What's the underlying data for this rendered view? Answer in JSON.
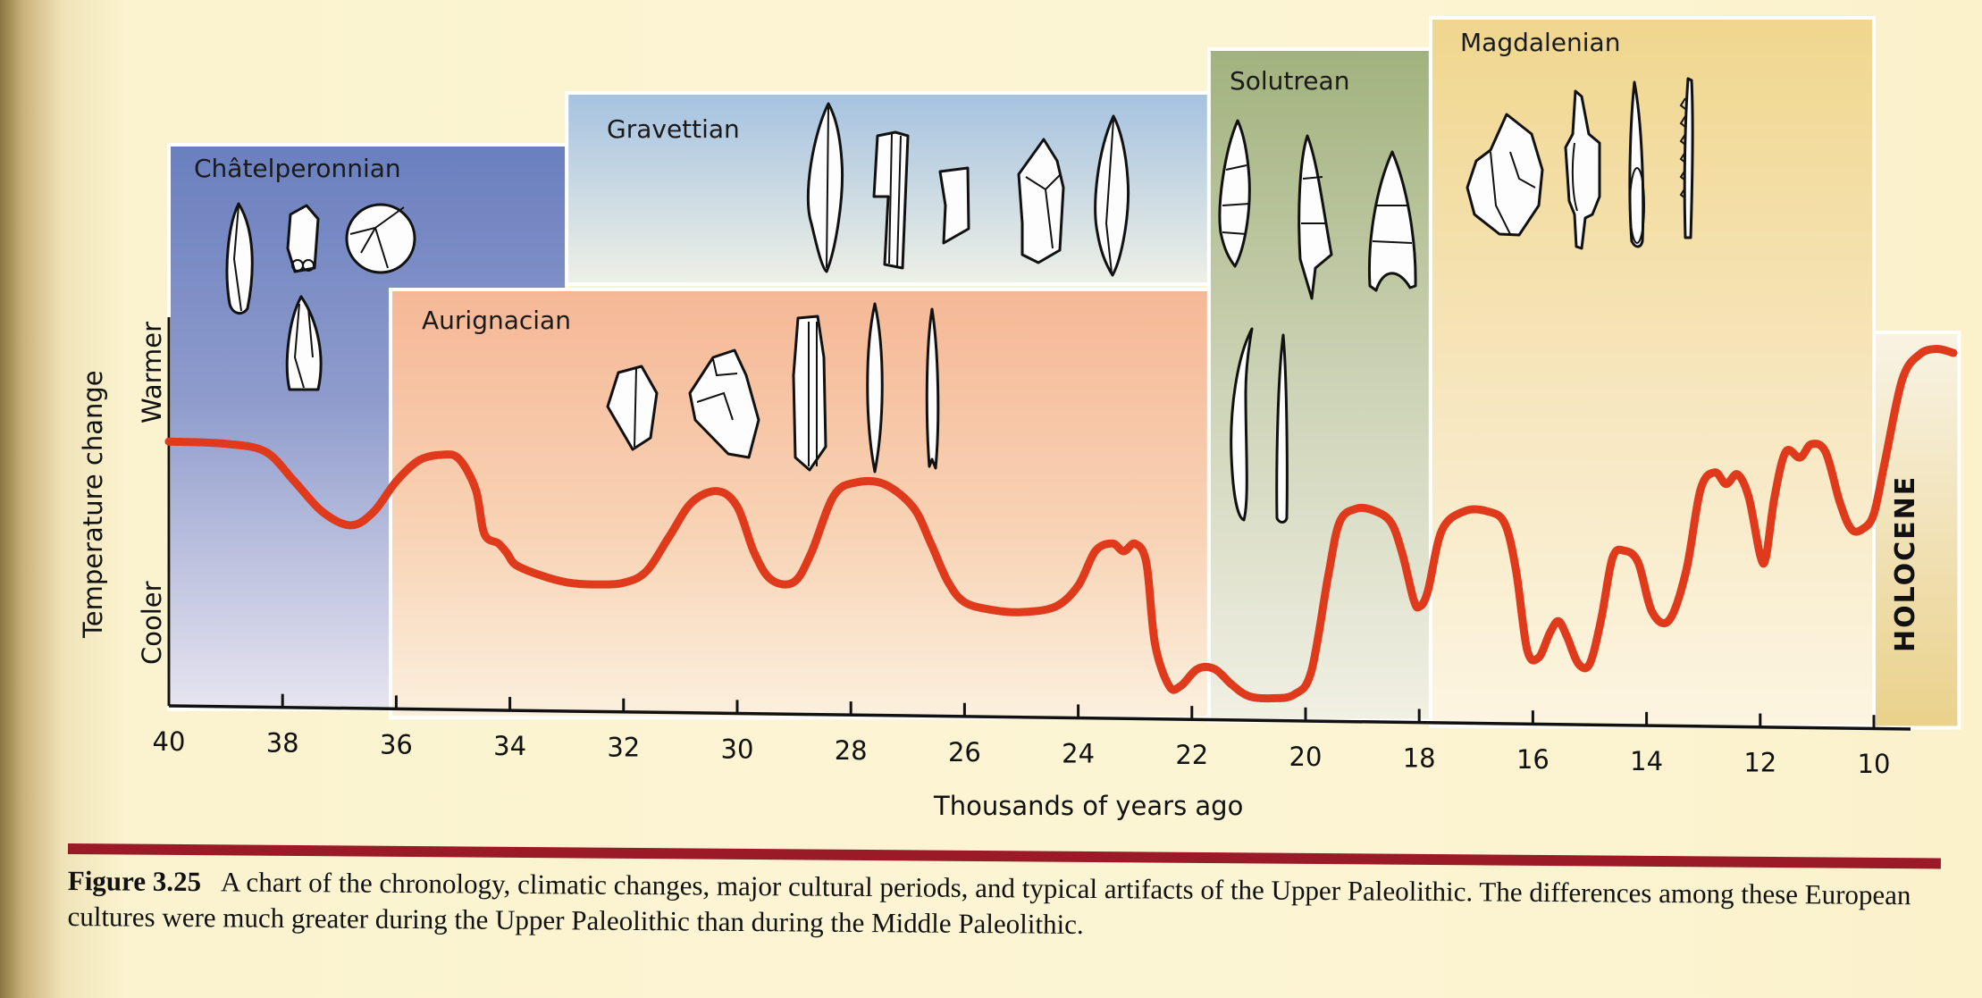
{
  "chart_data": {
    "type": "line",
    "title": "",
    "xlabel": "Thousands of years ago",
    "ylabel": "Temperature change",
    "y_axis_labels": {
      "low": "Cooler",
      "high": "Warmer"
    },
    "xlim": [
      40,
      8.5
    ],
    "x_reversed": true,
    "ylim": [
      0,
      10
    ],
    "grid": false,
    "x_ticks": [
      40,
      38,
      36,
      34,
      32,
      30,
      28,
      26,
      24,
      22,
      20,
      18,
      16,
      14,
      12,
      10
    ],
    "x_tick_labels": [
      "40",
      "38",
      "36",
      "34",
      "32",
      "30",
      "28",
      "26",
      "24",
      "22",
      "20",
      "18",
      "16",
      "14",
      "12",
      "10"
    ],
    "series": [
      {
        "name": "Temperature change",
        "color": "#e03a1c",
        "x": [
          40.0,
          39.0,
          38.3,
          37.8,
          37.3,
          36.8,
          36.4,
          36.0,
          35.6,
          35.2,
          34.9,
          34.6,
          34.45,
          34.2,
          34.05,
          33.9,
          33.5,
          33.0,
          32.5,
          32.0,
          31.6,
          31.2,
          30.8,
          30.35,
          30.0,
          29.7,
          29.4,
          29.0,
          28.7,
          28.3,
          27.9,
          27.4,
          26.9,
          26.6,
          26.3,
          26.0,
          25.5,
          25.0,
          24.4,
          24.0,
          23.7,
          23.4,
          23.2,
          23.0,
          22.8,
          22.65,
          22.4,
          22.2,
          21.9,
          21.6,
          21.3,
          21.0,
          20.6,
          20.2,
          19.9,
          19.6,
          19.4,
          19.1,
          18.8,
          18.5,
          18.3,
          18.1,
          18.0,
          17.85,
          17.6,
          17.2,
          16.8,
          16.5,
          16.3,
          16.1,
          15.9,
          15.7,
          15.55,
          15.4,
          15.2,
          15.0,
          14.8,
          14.6,
          14.4,
          14.15,
          13.9,
          13.6,
          13.3,
          13.05,
          12.8,
          12.6,
          12.4,
          12.2,
          12.0,
          11.9,
          11.75,
          11.55,
          11.3,
          11.1,
          10.85,
          10.6,
          10.4,
          10.2,
          10.0,
          9.8,
          9.5,
          9.2,
          8.9,
          8.6
        ],
        "y": [
          6.6,
          6.55,
          6.35,
          5.6,
          4.8,
          4.45,
          4.8,
          5.6,
          6.15,
          6.3,
          6.2,
          5.4,
          4.25,
          4.0,
          3.75,
          3.45,
          3.2,
          3.0,
          2.95,
          3.0,
          3.3,
          4.2,
          5.1,
          5.4,
          5.0,
          3.8,
          3.1,
          3.05,
          3.8,
          5.3,
          5.65,
          5.6,
          5.0,
          4.1,
          3.1,
          2.55,
          2.35,
          2.3,
          2.45,
          3.0,
          3.9,
          4.1,
          3.9,
          4.1,
          3.6,
          1.5,
          0.4,
          0.4,
          0.85,
          0.85,
          0.45,
          0.15,
          0.1,
          0.2,
          0.8,
          3.3,
          4.7,
          5.05,
          5.0,
          4.7,
          3.9,
          2.7,
          2.5,
          2.9,
          4.5,
          5.0,
          5.0,
          4.7,
          3.5,
          1.4,
          1.2,
          1.85,
          2.15,
          1.75,
          1.05,
          1.05,
          2.2,
          3.8,
          4.0,
          3.7,
          2.4,
          2.2,
          3.5,
          5.6,
          6.05,
          5.75,
          6.0,
          5.4,
          3.9,
          3.85,
          5.4,
          6.6,
          6.45,
          6.8,
          6.6,
          5.3,
          4.6,
          4.6,
          5.0,
          6.4,
          8.5,
          9.15,
          9.3,
          9.2
        ]
      }
    ],
    "periods": [
      {
        "name": "Châtelperonnian",
        "start_kya": 40,
        "end_kya": 33.0,
        "color_top": "#6a7fbf",
        "color_bottom": "#e4e2ee",
        "artifact_count": 4
      },
      {
        "name": "Gravettian",
        "start_kya": 33.0,
        "end_kya": 21.7,
        "color_top": "#a7c3e0",
        "color_bottom": "#edf1e8",
        "artifact_count": 5
      },
      {
        "name": "Aurignacian",
        "start_kya": 36.1,
        "end_kya": 21.7,
        "color_top": "#f6b896",
        "color_bottom": "#faeedc",
        "artifact_count": 5
      },
      {
        "name": "Solutrean",
        "start_kya": 21.7,
        "end_kya": 17.8,
        "color_top": "#a8b784",
        "color_bottom": "#eef0e2",
        "artifact_count": 5
      },
      {
        "name": "Magdalenian",
        "start_kya": 17.8,
        "end_kya": 10.0,
        "color_top": "#f2d890",
        "color_bottom": "#fbf3dc",
        "artifact_count": 4
      },
      {
        "name": "HOLOCENE",
        "start_kya": 10.0,
        "end_kya": 8.5,
        "color_top": "#f8f2e2",
        "color_bottom": "#ecd38e",
        "artifact_count": 0
      }
    ]
  },
  "caption": {
    "figure_number": "Figure 3.25",
    "text": "A chart of the chronology, climatic changes, major cultural periods, and typical artifacts of the Upper Paleolithic. The differences among these European cultures were much greater during the Upper Paleolithic than during the Middle Paleolithic.",
    "rule_color": "#9a1a28"
  }
}
